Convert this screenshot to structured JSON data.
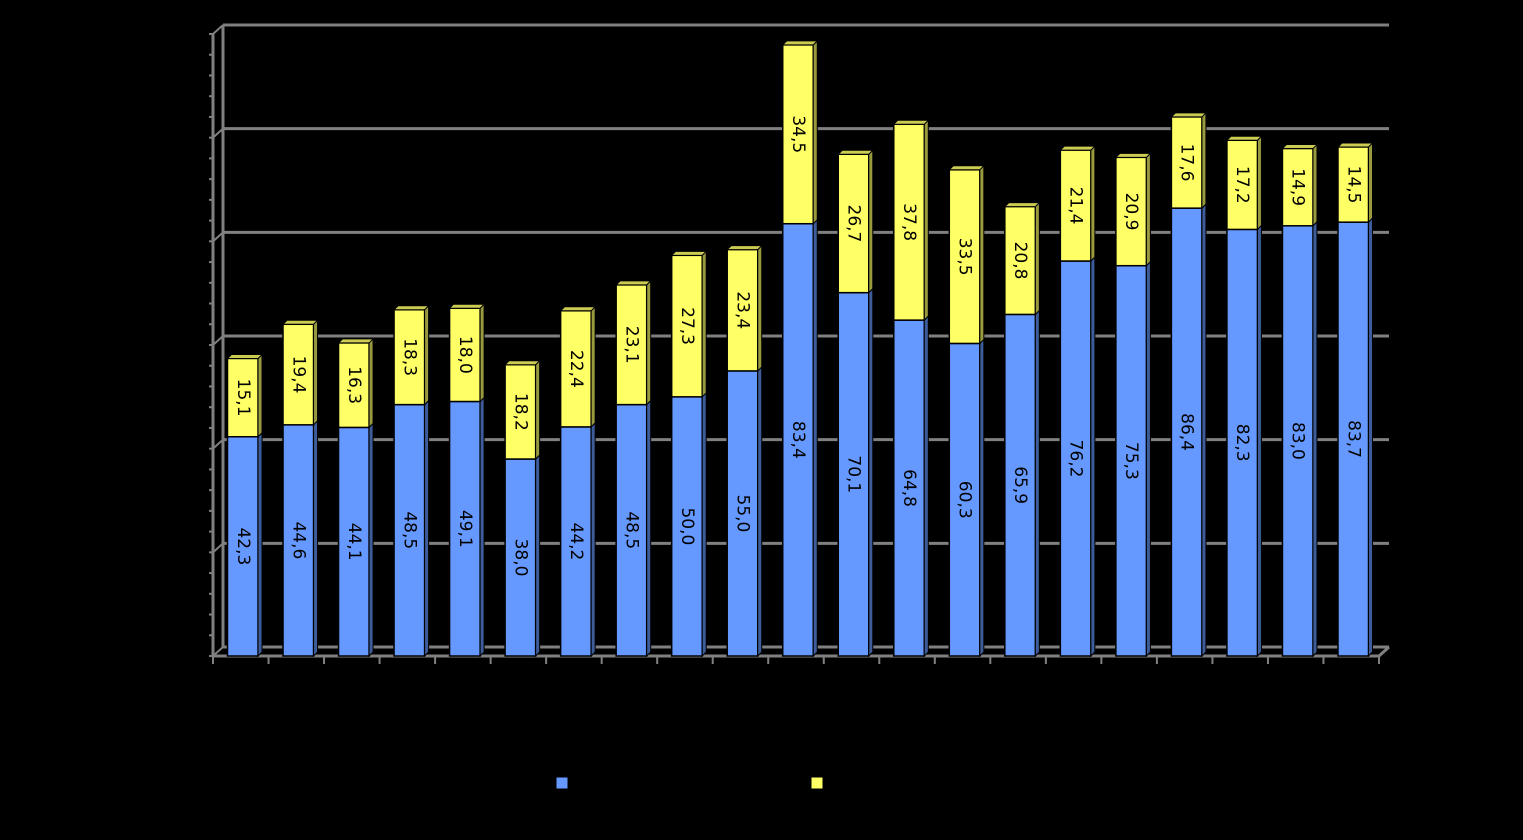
{
  "chart_data": {
    "type": "bar",
    "stacked": true,
    "three_d": true,
    "background": "#000000",
    "grid": true,
    "legend_position": "bottom",
    "ylim": [
      0,
      120
    ],
    "title": "",
    "xlabel": "",
    "ylabel": "",
    "categories": [
      "",
      "",
      "",
      "",
      "",
      "",
      "",
      "",
      "",
      "",
      "",
      "",
      "",
      "",
      "",
      "",
      "",
      "",
      "",
      "",
      ""
    ],
    "series": [
      {
        "color": "#6699FF",
        "values": [
          42.3,
          44.6,
          44.1,
          48.5,
          49.1,
          38.0,
          44.2,
          48.5,
          50.0,
          55.0,
          83.4,
          70.1,
          64.8,
          60.3,
          65.9,
          76.2,
          75.3,
          86.4,
          82.3,
          83.0,
          83.7
        ],
        "labels": [
          "42,3",
          "44,6",
          "44,1",
          "48,5",
          "49,1",
          "38,0",
          "44,2",
          "48,5",
          "50,0",
          "55,0",
          "83,4",
          "70,1",
          "64,8",
          "60,3",
          "65,9",
          "76,2",
          "75,3",
          "86,4",
          "82,3",
          "83,0",
          "83,7"
        ]
      },
      {
        "color": "#FFFF66",
        "values": [
          15.1,
          19.4,
          16.3,
          18.3,
          18.0,
          18.2,
          22.4,
          23.1,
          27.3,
          23.4,
          34.5,
          26.7,
          37.8,
          33.5,
          20.8,
          21.4,
          20.9,
          17.6,
          17.2,
          14.9,
          14.5
        ],
        "labels": [
          "15,1",
          "19,4",
          "16,3",
          "18,3",
          "18,0",
          "18,2",
          "22,4",
          "23,1",
          "27,3",
          "23,4",
          "34,5",
          "26,7",
          "37,8",
          "33,5",
          "20,8",
          "21,4",
          "20,9",
          "17,6",
          "17,2",
          "14,9",
          "14,5"
        ]
      }
    ],
    "legend": [
      {
        "color": "#6699FF"
      },
      {
        "color": "#FFFF66"
      }
    ]
  }
}
